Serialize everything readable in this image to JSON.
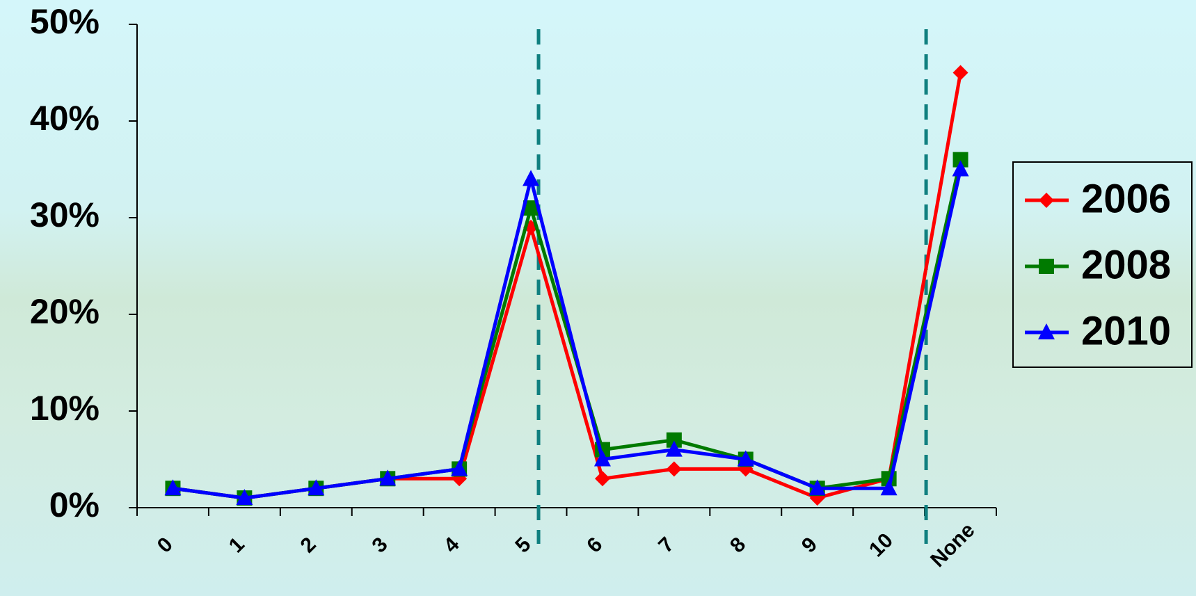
{
  "chart_data": {
    "type": "line",
    "categories": [
      "0",
      "1",
      "2",
      "3",
      "4",
      "5",
      "6",
      "7",
      "8",
      "9",
      "10",
      "None"
    ],
    "series": [
      {
        "name": "2006",
        "color": "#ff0000",
        "marker": "diamond",
        "values": [
          2,
          1,
          2,
          3,
          3,
          29,
          3,
          4,
          4,
          1,
          3,
          45
        ]
      },
      {
        "name": "2008",
        "color": "#007a00",
        "marker": "square",
        "values": [
          2,
          1,
          2,
          3,
          4,
          31,
          6,
          7,
          5,
          2,
          3,
          36
        ]
      },
      {
        "name": "2010",
        "color": "#0000ff",
        "marker": "triangle",
        "values": [
          2,
          1,
          2,
          3,
          4,
          34,
          5,
          6,
          5,
          2,
          2,
          35
        ]
      }
    ],
    "ylim": [
      0,
      50
    ],
    "yticks": [
      {
        "value": 0,
        "label": "0%"
      },
      {
        "value": 10,
        "label": "10%"
      },
      {
        "value": 20,
        "label": "20%"
      },
      {
        "value": 30,
        "label": "30%"
      },
      {
        "value": 40,
        "label": "40%"
      },
      {
        "value": 50,
        "label": "50%"
      }
    ],
    "grid": false,
    "legend": "right"
  }
}
